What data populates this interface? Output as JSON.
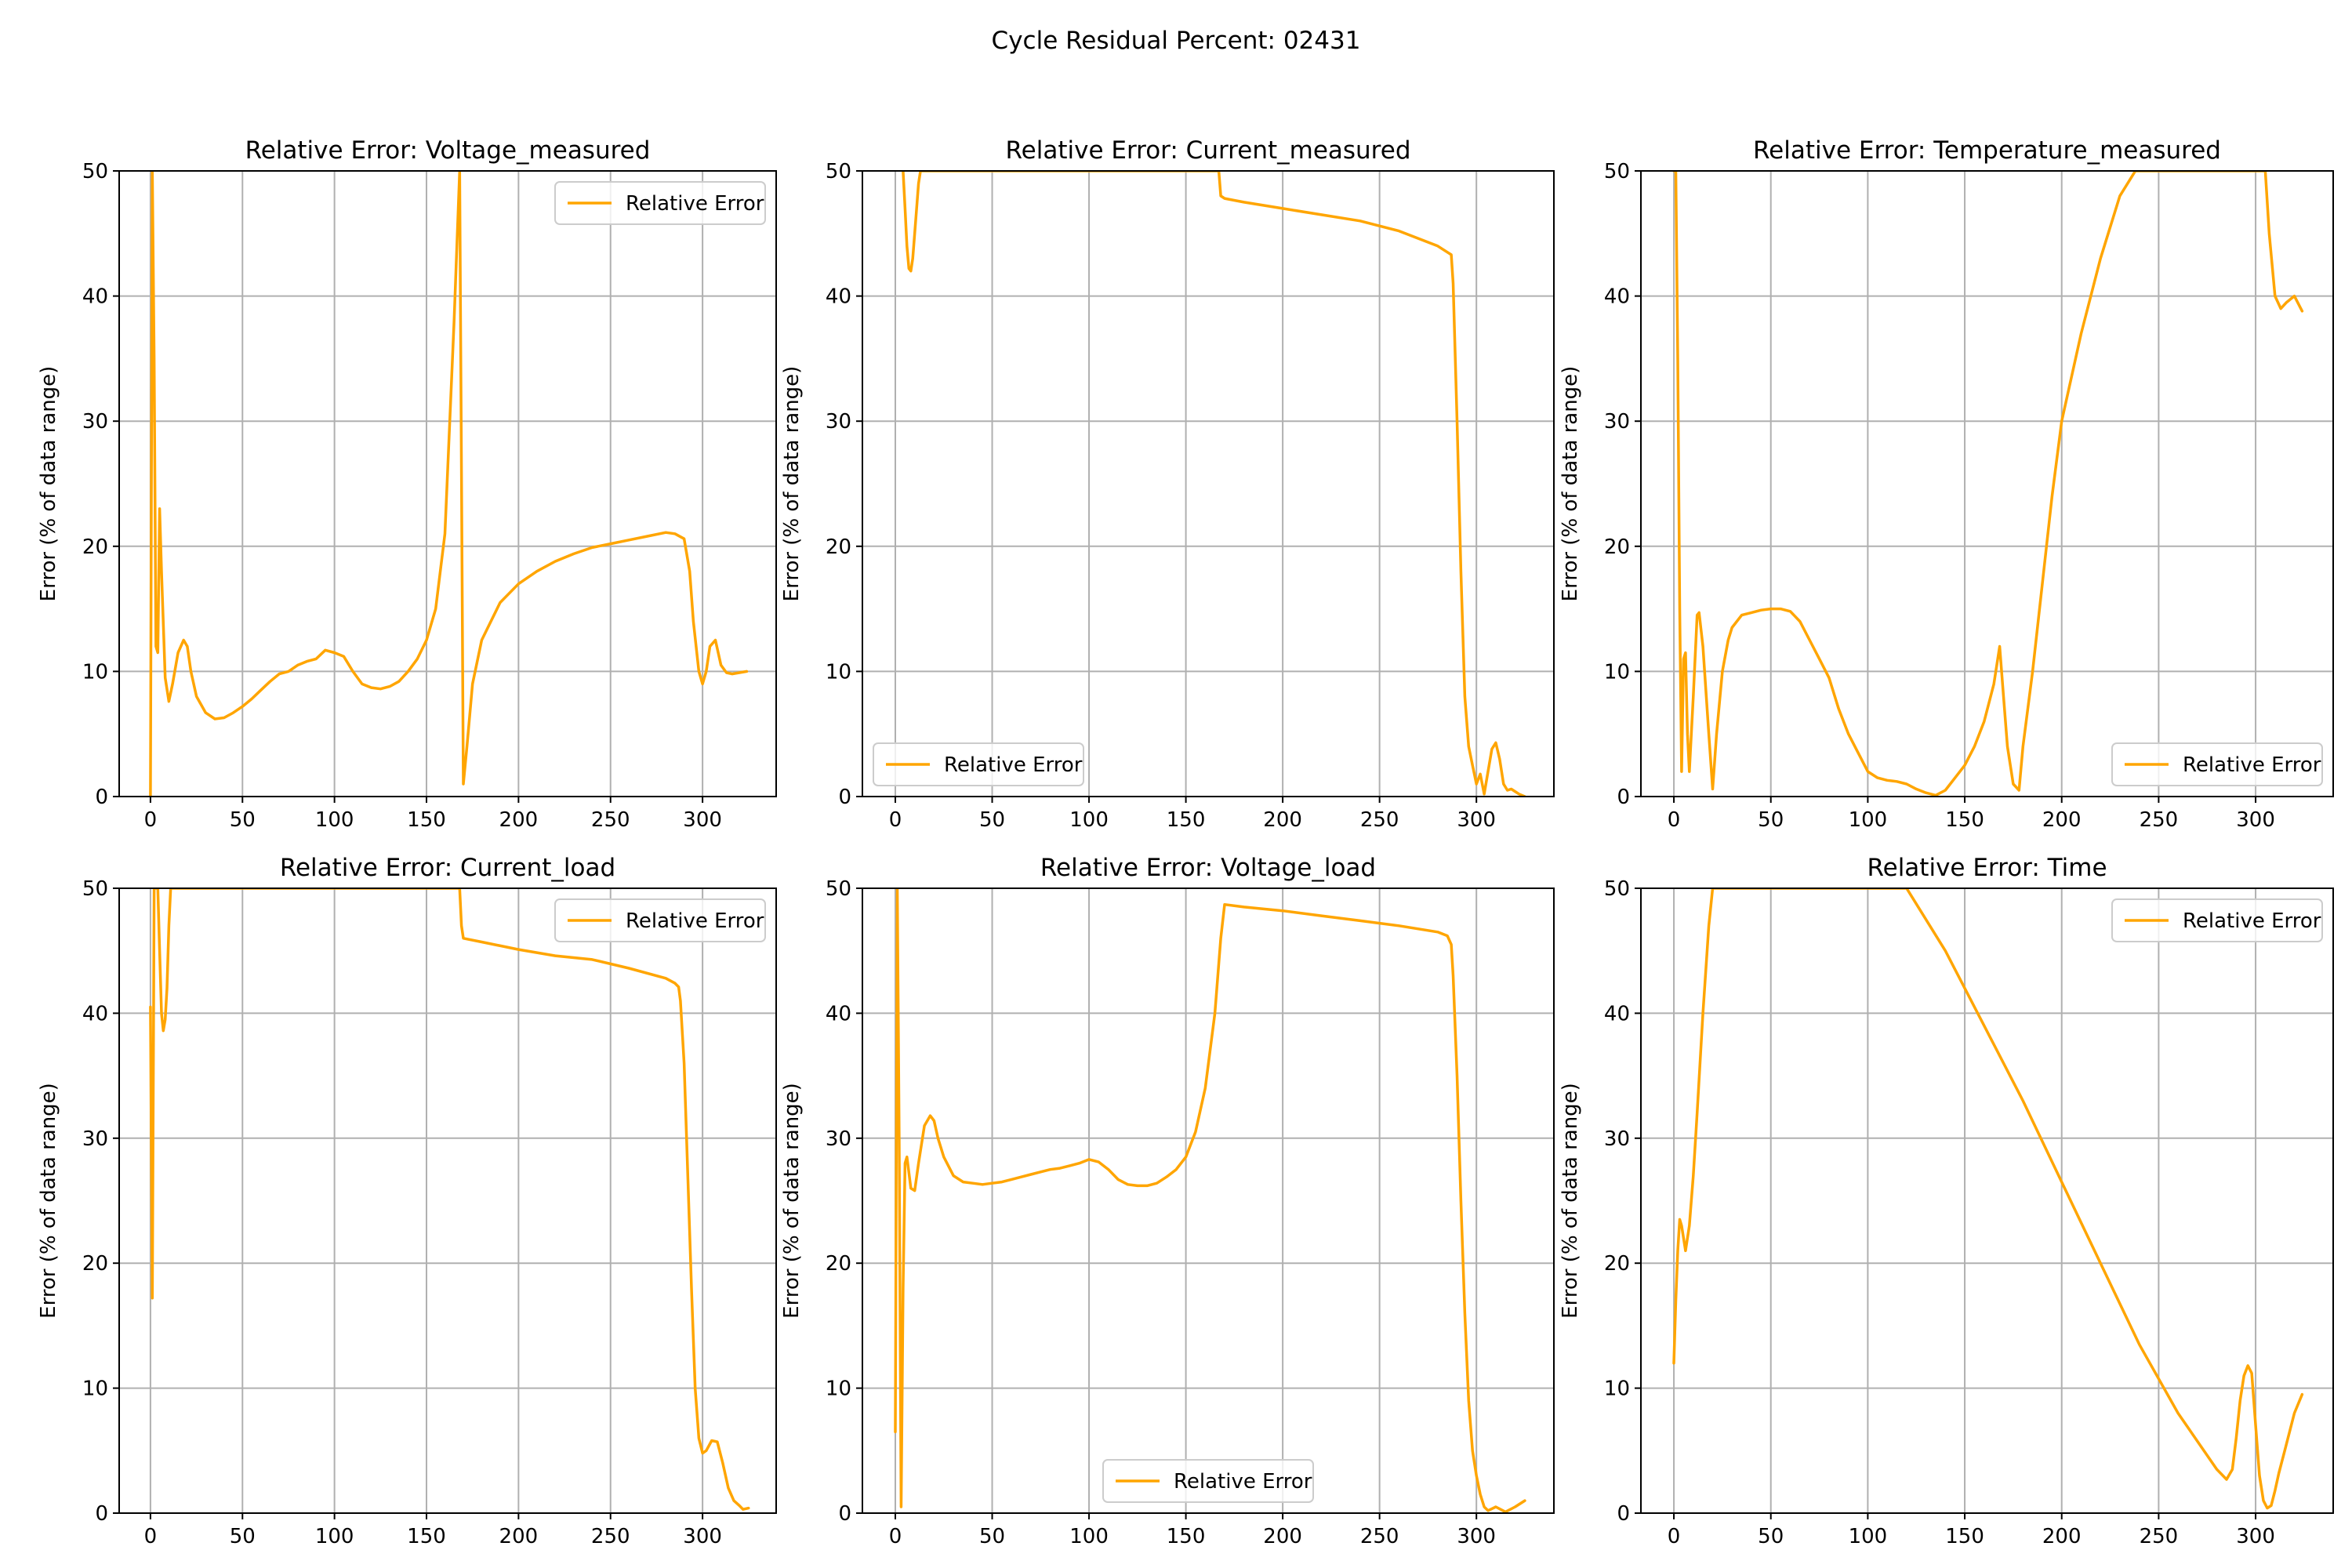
{
  "figure_title": "Cycle Residual Percent: 02431",
  "colors": {
    "series": "#ffa500",
    "grid": "#b0b0b0"
  },
  "chart_data": [
    {
      "type": "line",
      "title": "Relative Error: Voltage_measured",
      "xlabel": "",
      "ylabel": "Error (% of data range)",
      "xlim": [
        -17,
        340
      ],
      "ylim": [
        0,
        50
      ],
      "xticks": [
        "0",
        "50",
        "100",
        "150",
        "200",
        "250",
        "300"
      ],
      "yticks": [
        "0",
        "10",
        "20",
        "30",
        "40",
        "50"
      ],
      "grid": true,
      "legend": "upper right",
      "series": [
        {
          "name": "Relative Error",
          "x": [
            0,
            1,
            2,
            3,
            4,
            5,
            6,
            8,
            10,
            12,
            15,
            18,
            20,
            22,
            25,
            30,
            35,
            40,
            45,
            50,
            55,
            60,
            65,
            70,
            75,
            80,
            85,
            90,
            95,
            100,
            105,
            110,
            115,
            120,
            125,
            130,
            135,
            140,
            145,
            150,
            155,
            160,
            165,
            168,
            170,
            172,
            175,
            180,
            190,
            200,
            210,
            220,
            230,
            240,
            250,
            260,
            270,
            280,
            285,
            290,
            293,
            295,
            298,
            300,
            302,
            304,
            307,
            310,
            313,
            316,
            320,
            324
          ],
          "y": [
            0,
            50,
            35,
            12,
            11.5,
            23,
            18,
            9.5,
            7.6,
            9,
            11.5,
            12.5,
            12,
            10,
            8,
            6.7,
            6.2,
            6.3,
            6.7,
            7.2,
            7.8,
            8.5,
            9.2,
            9.8,
            10,
            10.5,
            10.8,
            11,
            11.7,
            11.5,
            11.2,
            10,
            9,
            8.7,
            8.6,
            8.8,
            9.2,
            10,
            11,
            12.5,
            15,
            21,
            38,
            50,
            1,
            4,
            9,
            12.5,
            15.5,
            17,
            18,
            18.8,
            19.4,
            19.9,
            20.2,
            20.5,
            20.8,
            21.1,
            21,
            20.6,
            18,
            14,
            10,
            9,
            10,
            12,
            12.5,
            10.5,
            9.9,
            9.8,
            9.9,
            10
          ]
        }
      ]
    },
    {
      "type": "line",
      "title": "Relative Error: Current_measured",
      "xlabel": "",
      "ylabel": "Error (% of data range)",
      "xlim": [
        -17,
        340
      ],
      "ylim": [
        0,
        50
      ],
      "xticks": [
        "0",
        "50",
        "100",
        "150",
        "200",
        "250",
        "300"
      ],
      "yticks": [
        "0",
        "10",
        "20",
        "30",
        "40",
        "50"
      ],
      "grid": true,
      "legend": "lower left",
      "series": [
        {
          "name": "Relative Error",
          "x": [
            4,
            5,
            6,
            7,
            8,
            9,
            10,
            12,
            13,
            167,
            168,
            170,
            180,
            200,
            220,
            240,
            260,
            280,
            285,
            287,
            288,
            290,
            292,
            294,
            296,
            298,
            300,
            302,
            304,
            306,
            308,
            310,
            312,
            314,
            316,
            318,
            320,
            322,
            325
          ],
          "y": [
            50,
            47,
            44,
            42.2,
            42,
            43,
            45,
            49,
            50,
            50,
            48,
            47.8,
            47.5,
            47,
            46.5,
            46,
            45.2,
            44,
            43.5,
            43.3,
            41,
            30,
            18,
            8,
            4,
            2.5,
            1,
            1.8,
            0.2,
            2,
            3.8,
            4.3,
            3,
            1,
            0.5,
            0.6,
            0.4,
            0.2,
            0
          ]
        }
      ]
    },
    {
      "type": "line",
      "title": "Relative Error: Temperature_measured",
      "xlabel": "",
      "ylabel": "Error (% of data range)",
      "xlim": [
        -17,
        340
      ],
      "ylim": [
        0,
        50
      ],
      "xticks": [
        "0",
        "50",
        "100",
        "150",
        "200",
        "250",
        "300"
      ],
      "yticks": [
        "0",
        "10",
        "20",
        "30",
        "40",
        "50"
      ],
      "grid": true,
      "legend": "lower right",
      "series": [
        {
          "name": "Relative Error",
          "x": [
            0,
            1,
            2,
            3,
            4,
            5,
            6,
            7,
            8,
            10,
            12,
            13,
            15,
            18,
            20,
            22,
            25,
            28,
            30,
            35,
            40,
            45,
            50,
            55,
            60,
            65,
            70,
            75,
            80,
            85,
            90,
            95,
            100,
            105,
            110,
            115,
            120,
            125,
            130,
            135,
            140,
            145,
            150,
            155,
            160,
            165,
            168,
            170,
            172,
            175,
            178,
            180,
            185,
            190,
            195,
            200,
            210,
            220,
            230,
            238,
            240,
            305,
            307,
            310,
            313,
            316,
            320,
            324
          ],
          "y": [
            50,
            50,
            35,
            15,
            2,
            11,
            11.5,
            5,
            2,
            8,
            14.5,
            14.7,
            12,
            5,
            0.6,
            5,
            10,
            12.5,
            13.5,
            14.5,
            14.7,
            14.9,
            15,
            15,
            14.8,
            14,
            12.5,
            11,
            9.5,
            7,
            5,
            3.5,
            2,
            1.5,
            1.3,
            1.2,
            1,
            0.6,
            0.3,
            0.1,
            0.5,
            1.5,
            2.5,
            4,
            6,
            9,
            12,
            8,
            4,
            1,
            0.5,
            4,
            10,
            17,
            24,
            30,
            37,
            43,
            48,
            50,
            50,
            50,
            45,
            40,
            39,
            39.5,
            40,
            38.8
          ]
        }
      ]
    },
    {
      "type": "line",
      "title": "Relative Error: Current_load",
      "xlabel": "",
      "ylabel": "Error (% of data range)",
      "xlim": [
        -17,
        340
      ],
      "ylim": [
        0,
        50
      ],
      "xticks": [
        "0",
        "50",
        "100",
        "150",
        "200",
        "250",
        "300"
      ],
      "yticks": [
        "0",
        "10",
        "20",
        "30",
        "40",
        "50"
      ],
      "grid": true,
      "legend": "upper right",
      "series": [
        {
          "name": "Relative Error",
          "x": [
            0,
            1,
            2,
            3,
            4,
            5,
            6,
            7,
            8,
            9,
            10,
            11,
            168,
            169,
            170,
            180,
            200,
            220,
            240,
            260,
            280,
            285,
            287,
            288,
            290,
            292,
            294,
            296,
            298,
            300,
            302,
            305,
            308,
            311,
            314,
            317,
            320,
            322,
            325
          ],
          "y": [
            40.5,
            17.2,
            50,
            50,
            50,
            45,
            40,
            38.6,
            39.5,
            42,
            47,
            50,
            50,
            47,
            46,
            45.7,
            45.1,
            44.6,
            44.3,
            43.6,
            42.8,
            42.4,
            42.1,
            41,
            36,
            27,
            18,
            10,
            6,
            4.8,
            5,
            5.8,
            5.7,
            4,
            2,
            1,
            0.6,
            0.3,
            0.4
          ]
        }
      ]
    },
    {
      "type": "line",
      "title": "Relative Error: Voltage_load",
      "xlabel": "",
      "ylabel": "Error (% of data range)",
      "xlim": [
        -17,
        340
      ],
      "ylim": [
        0,
        50
      ],
      "xticks": [
        "0",
        "50",
        "100",
        "150",
        "200",
        "250",
        "300"
      ],
      "yticks": [
        "0",
        "10",
        "20",
        "30",
        "40",
        "50"
      ],
      "grid": true,
      "legend": "lower center",
      "series": [
        {
          "name": "Relative Error",
          "x": [
            0,
            1,
            2,
            3,
            4,
            5,
            6,
            8,
            10,
            12,
            15,
            18,
            20,
            22,
            25,
            30,
            35,
            40,
            45,
            50,
            55,
            60,
            65,
            70,
            75,
            80,
            85,
            90,
            95,
            100,
            105,
            110,
            115,
            120,
            125,
            130,
            135,
            140,
            145,
            150,
            155,
            160,
            165,
            168,
            170,
            180,
            200,
            220,
            240,
            260,
            280,
            285,
            287,
            288,
            290,
            292,
            294,
            296,
            298,
            300,
            302,
            304,
            306,
            310,
            315,
            320,
            325
          ],
          "y": [
            6.5,
            50,
            30,
            0.5,
            18,
            28,
            28.5,
            26,
            25.8,
            28,
            31,
            31.8,
            31.4,
            30,
            28.5,
            27,
            26.5,
            26.4,
            26.3,
            26.4,
            26.5,
            26.7,
            26.9,
            27.1,
            27.3,
            27.5,
            27.6,
            27.8,
            28,
            28.3,
            28.1,
            27.5,
            26.7,
            26.3,
            26.2,
            26.2,
            26.4,
            26.9,
            27.5,
            28.5,
            30.5,
            34,
            40,
            46,
            48.7,
            48.5,
            48.2,
            47.8,
            47.4,
            47,
            46.5,
            46.2,
            45.5,
            43,
            35,
            25,
            16,
            9,
            5,
            3,
            1.5,
            0.5,
            0.2,
            0.5,
            0.1,
            0.5,
            1
          ]
        }
      ]
    },
    {
      "type": "line",
      "title": "Relative Error: Time",
      "xlabel": "",
      "ylabel": "Error (% of data range)",
      "xlim": [
        -17,
        340
      ],
      "ylim": [
        0,
        50
      ],
      "xticks": [
        "0",
        "50",
        "100",
        "150",
        "200",
        "250",
        "300"
      ],
      "yticks": [
        "0",
        "10",
        "20",
        "30",
        "40",
        "50"
      ],
      "grid": true,
      "legend": "upper right",
      "series": [
        {
          "name": "Relative Error",
          "x": [
            0,
            1,
            2,
            3,
            4,
            5,
            6,
            8,
            10,
            12,
            15,
            18,
            20,
            21,
            120,
            140,
            160,
            180,
            200,
            220,
            240,
            260,
            280,
            285,
            288,
            290,
            292,
            294,
            296,
            298,
            300,
            302,
            304,
            306,
            308,
            310,
            312,
            315,
            318,
            320,
            324
          ],
          "y": [
            12,
            17,
            21,
            23.5,
            23,
            22,
            21,
            23,
            27,
            32,
            40,
            47,
            50,
            50,
            50,
            45,
            39,
            33,
            26.5,
            20,
            13.5,
            8,
            3.5,
            2.7,
            3.5,
            6,
            9,
            11,
            11.8,
            11.2,
            7,
            3,
            1,
            0.4,
            0.6,
            1.8,
            3.2,
            5,
            6.8,
            8,
            9.5
          ]
        }
      ]
    }
  ]
}
